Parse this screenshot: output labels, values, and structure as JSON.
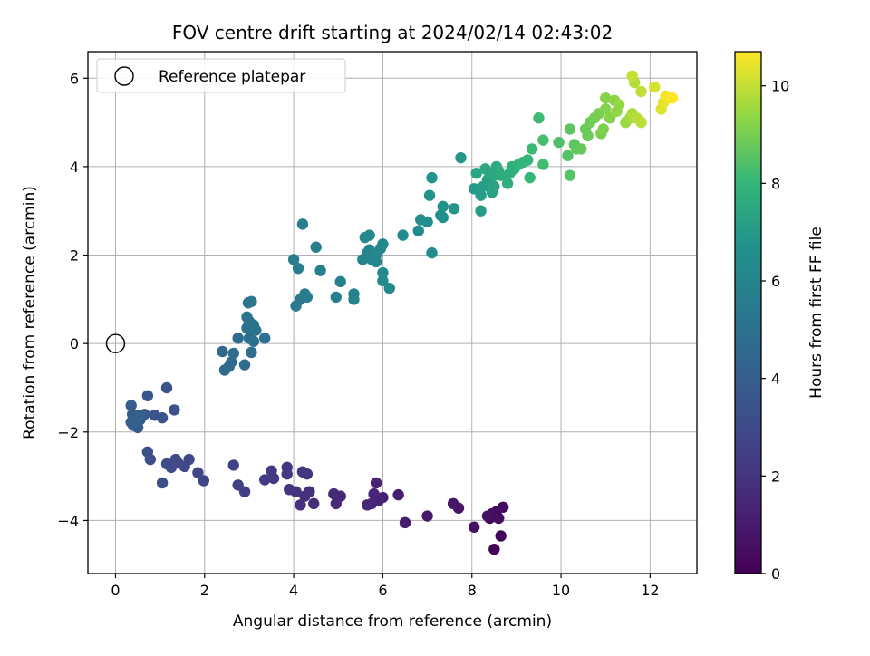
{
  "chart_data": {
    "type": "scatter",
    "title": "FOV centre drift starting at 2024/02/14 02:43:02",
    "xlabel": "Angular distance from reference (arcmin)",
    "ylabel": "Rotation from reference (arcmin)",
    "xlim": [
      -0.62,
      13.05
    ],
    "ylim": [
      -5.2,
      6.6
    ],
    "xticks": [
      0,
      2,
      4,
      6,
      8,
      10,
      12
    ],
    "yticks": [
      -4,
      -2,
      0,
      2,
      4,
      6
    ],
    "grid": true,
    "legend": {
      "placement": "top-left",
      "entries": [
        "Reference platepar"
      ]
    },
    "reference_point": {
      "x": 0,
      "y": 0
    },
    "colorbar": {
      "label": "Hours from first FF file",
      "colormap": "viridis",
      "range": [
        0,
        10.7
      ],
      "ticks": [
        0,
        2,
        4,
        6,
        8,
        10
      ]
    },
    "points": [
      [
        8.5,
        -4.65,
        0.1
      ],
      [
        8.65,
        -4.35,
        0.2
      ],
      [
        8.4,
        -3.95,
        0.3
      ],
      [
        8.55,
        -3.8,
        0.35
      ],
      [
        8.7,
        -3.7,
        0.4
      ],
      [
        8.45,
        -3.85,
        0.45
      ],
      [
        8.6,
        -3.95,
        0.5
      ],
      [
        8.35,
        -3.9,
        0.55
      ],
      [
        8.05,
        -4.15,
        0.6
      ],
      [
        7.7,
        -3.72,
        0.7
      ],
      [
        7.58,
        -3.62,
        0.8
      ],
      [
        7.0,
        -3.9,
        0.9
      ],
      [
        6.5,
        -4.05,
        1.0
      ],
      [
        6.35,
        -3.42,
        1.1
      ],
      [
        6.0,
        -3.48,
        1.2
      ],
      [
        5.85,
        -3.15,
        1.25
      ],
      [
        5.75,
        -3.62,
        1.3
      ],
      [
        5.9,
        -3.55,
        1.35
      ],
      [
        5.8,
        -3.4,
        1.4
      ],
      [
        5.65,
        -3.65,
        1.45
      ],
      [
        5.05,
        -3.45,
        1.55
      ],
      [
        4.95,
        -3.62,
        1.6
      ],
      [
        4.9,
        -3.4,
        1.65
      ],
      [
        4.45,
        -3.62,
        1.75
      ],
      [
        4.35,
        -3.35,
        1.8
      ],
      [
        4.25,
        -3.45,
        1.85
      ],
      [
        4.15,
        -3.65,
        1.9
      ],
      [
        4.05,
        -3.35,
        1.95
      ],
      [
        3.9,
        -3.3,
        2.0
      ],
      [
        4.3,
        -2.95,
        2.05
      ],
      [
        4.2,
        -2.9,
        2.1
      ],
      [
        3.85,
        -2.8,
        2.15
      ],
      [
        3.85,
        -2.95,
        2.2
      ],
      [
        3.55,
        -3.05,
        2.25
      ],
      [
        3.5,
        -2.88,
        2.3
      ],
      [
        3.35,
        -3.08,
        2.35
      ],
      [
        2.9,
        -3.35,
        2.45
      ],
      [
        2.75,
        -3.2,
        2.55
      ],
      [
        2.65,
        -2.75,
        2.6
      ],
      [
        1.98,
        -3.1,
        2.7
      ],
      [
        1.85,
        -2.92,
        2.75
      ],
      [
        1.65,
        -2.62,
        2.85
      ],
      [
        1.55,
        -2.78,
        2.9
      ],
      [
        1.4,
        -2.7,
        2.95
      ],
      [
        1.35,
        -2.62,
        3.0
      ],
      [
        1.25,
        -2.8,
        3.05
      ],
      [
        1.15,
        -2.72,
        3.1
      ],
      [
        1.05,
        -3.15,
        3.15
      ],
      [
        0.78,
        -2.62,
        3.2
      ],
      [
        0.72,
        -2.45,
        3.25
      ],
      [
        1.32,
        -1.5,
        3.35
      ],
      [
        1.15,
        -1.0,
        3.4
      ],
      [
        1.05,
        -1.68,
        3.45
      ],
      [
        0.88,
        -1.62,
        3.5
      ],
      [
        0.72,
        -1.18,
        3.55
      ],
      [
        0.65,
        -1.6,
        3.6
      ],
      [
        0.55,
        -1.72,
        3.65
      ],
      [
        0.5,
        -1.9,
        3.7
      ],
      [
        0.45,
        -1.85,
        3.75
      ],
      [
        0.4,
        -1.72,
        3.8
      ],
      [
        0.38,
        -1.6,
        3.85
      ],
      [
        0.35,
        -1.4,
        3.9
      ],
      [
        0.35,
        -1.78,
        3.95
      ],
      [
        0.4,
        -1.85,
        4.0
      ],
      [
        0.55,
        -1.62,
        4.05
      ],
      [
        0.45,
        -1.75,
        4.1
      ],
      [
        2.45,
        -0.6,
        4.5
      ],
      [
        2.4,
        -0.18,
        4.55
      ],
      [
        2.55,
        -0.52,
        4.6
      ],
      [
        2.6,
        -0.42,
        4.62
      ],
      [
        2.9,
        -0.48,
        4.65
      ],
      [
        2.65,
        -0.22,
        4.7
      ],
      [
        2.75,
        0.12,
        4.75
      ],
      [
        3.05,
        -0.2,
        4.8
      ],
      [
        3.1,
        0.05,
        4.85
      ],
      [
        3.35,
        0.12,
        4.9
      ],
      [
        3.0,
        0.12,
        4.95
      ],
      [
        2.95,
        0.35,
        5.0
      ],
      [
        3.15,
        0.3,
        5.05
      ],
      [
        3.0,
        0.5,
        5.1
      ],
      [
        2.95,
        0.6,
        5.12
      ],
      [
        3.1,
        0.42,
        5.15
      ],
      [
        2.98,
        0.92,
        5.2
      ],
      [
        3.05,
        0.95,
        5.25
      ],
      [
        4.05,
        0.85,
        5.4
      ],
      [
        4.15,
        1.0,
        5.45
      ],
      [
        4.25,
        1.12,
        5.5
      ],
      [
        4.3,
        1.05,
        5.52
      ],
      [
        4.0,
        1.9,
        5.55
      ],
      [
        4.1,
        1.7,
        5.6
      ],
      [
        4.5,
        2.18,
        5.65
      ],
      [
        4.2,
        2.7,
        5.7
      ],
      [
        4.6,
        1.65,
        5.75
      ],
      [
        4.95,
        1.05,
        5.8
      ],
      [
        5.05,
        1.4,
        5.85
      ],
      [
        5.35,
        1.12,
        5.9
      ],
      [
        5.35,
        1.0,
        5.95
      ],
      [
        5.55,
        1.9,
        6.0
      ],
      [
        5.65,
        2.05,
        6.02
      ],
      [
        5.7,
        2.12,
        6.05
      ],
      [
        5.85,
        2.0,
        6.08
      ],
      [
        5.75,
        1.9,
        6.1
      ],
      [
        5.85,
        1.85,
        6.12
      ],
      [
        5.95,
        2.15,
        6.15
      ],
      [
        5.6,
        2.4,
        6.18
      ],
      [
        5.7,
        2.45,
        6.2
      ],
      [
        6.0,
        2.25,
        6.22
      ],
      [
        6.0,
        1.6,
        6.25
      ],
      [
        6.0,
        1.42,
        6.28
      ],
      [
        6.15,
        1.25,
        6.3
      ],
      [
        6.45,
        2.45,
        6.35
      ],
      [
        6.8,
        2.55,
        6.4
      ],
      [
        6.85,
        2.8,
        6.45
      ],
      [
        7.0,
        2.75,
        6.5
      ],
      [
        7.1,
        2.05,
        6.55
      ],
      [
        7.3,
        2.9,
        6.6
      ],
      [
        7.35,
        2.85,
        6.65
      ],
      [
        7.35,
        3.1,
        6.7
      ],
      [
        7.05,
        3.35,
        6.75
      ],
      [
        7.1,
        3.75,
        6.8
      ],
      [
        7.6,
        3.05,
        6.85
      ],
      [
        7.75,
        4.2,
        6.9
      ],
      [
        8.05,
        3.5,
        7.0
      ],
      [
        8.2,
        3.35,
        7.05
      ],
      [
        8.2,
        3.0,
        7.1
      ],
      [
        8.25,
        3.55,
        7.15
      ],
      [
        8.35,
        3.7,
        7.2
      ],
      [
        8.45,
        3.42,
        7.25
      ],
      [
        8.5,
        3.8,
        7.3
      ],
      [
        8.5,
        3.55,
        7.35
      ],
      [
        8.1,
        3.85,
        7.4
      ],
      [
        8.3,
        3.95,
        7.45
      ],
      [
        8.4,
        3.85,
        7.5
      ],
      [
        8.6,
        3.9,
        7.55
      ],
      [
        8.55,
        4.0,
        7.6
      ],
      [
        8.65,
        3.8,
        7.65
      ],
      [
        8.8,
        3.62,
        7.7
      ],
      [
        8.85,
        3.85,
        7.75
      ],
      [
        8.9,
        4.0,
        7.8
      ],
      [
        8.95,
        3.95,
        7.85
      ],
      [
        9.05,
        4.05,
        7.9
      ],
      [
        9.15,
        4.1,
        7.95
      ],
      [
        9.25,
        4.15,
        8.0
      ],
      [
        9.3,
        3.75,
        8.05
      ],
      [
        9.35,
        4.4,
        8.1
      ],
      [
        9.5,
        5.1,
        8.2
      ],
      [
        9.6,
        4.05,
        8.25
      ],
      [
        9.6,
        4.6,
        8.3
      ],
      [
        9.95,
        4.55,
        8.4
      ],
      [
        10.15,
        4.25,
        8.5
      ],
      [
        10.2,
        3.8,
        8.55
      ],
      [
        10.2,
        4.85,
        8.6
      ],
      [
        10.3,
        4.5,
        8.65
      ],
      [
        10.35,
        4.4,
        8.7
      ],
      [
        10.45,
        4.4,
        8.75
      ],
      [
        10.55,
        4.85,
        8.8
      ],
      [
        10.6,
        4.7,
        8.85
      ],
      [
        10.65,
        5.0,
        8.9
      ],
      [
        10.75,
        5.1,
        8.95
      ],
      [
        10.85,
        5.2,
        9.0
      ],
      [
        10.9,
        4.75,
        9.05
      ],
      [
        10.95,
        4.85,
        9.1
      ],
      [
        11.0,
        5.3,
        9.15
      ],
      [
        11.0,
        5.55,
        9.2
      ],
      [
        11.1,
        5.1,
        9.25
      ],
      [
        11.2,
        5.5,
        9.3
      ],
      [
        11.25,
        5.25,
        9.35
      ],
      [
        11.3,
        5.4,
        9.4
      ],
      [
        11.45,
        5.0,
        9.5
      ],
      [
        11.55,
        5.1,
        9.6
      ],
      [
        11.6,
        5.2,
        9.7
      ],
      [
        11.65,
        5.9,
        9.8
      ],
      [
        11.7,
        5.1,
        9.85
      ],
      [
        11.8,
        5.0,
        9.9
      ],
      [
        11.8,
        5.7,
        9.95
      ],
      [
        11.6,
        6.05,
        10.0
      ],
      [
        12.1,
        5.8,
        10.2
      ],
      [
        12.25,
        5.3,
        10.3
      ],
      [
        12.3,
        5.45,
        10.4
      ],
      [
        12.35,
        5.6,
        10.5
      ],
      [
        12.4,
        5.55,
        10.6
      ],
      [
        12.5,
        5.55,
        10.7
      ]
    ]
  }
}
